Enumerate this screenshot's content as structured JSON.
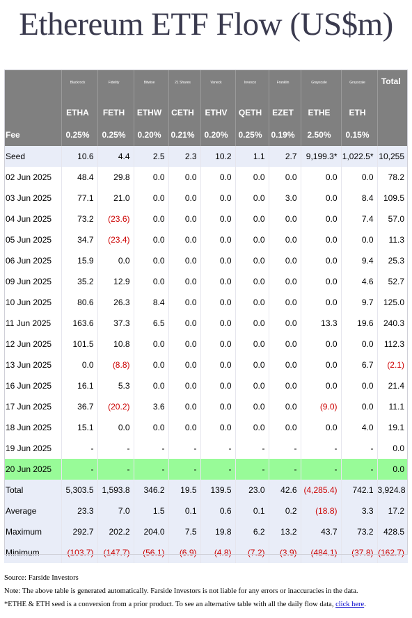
{
  "title": "Ethereum ETF Flow (US$m)",
  "table": {
    "issuers": [
      "Blackrock",
      "Fidelity",
      "Bitwise",
      "21 Shares",
      "Vaneck",
      "Invesco",
      "Franklin",
      "Grayscale",
      "Grayscale"
    ],
    "total_label": "Total",
    "tickers": [
      "ETHA",
      "FETH",
      "ETHW",
      "CETH",
      "ETHV",
      "QETH",
      "EZET",
      "ETHE",
      "ETH"
    ],
    "fee_label": "Fee",
    "fees": [
      "0.25%",
      "0.25%",
      "0.20%",
      "0.21%",
      "0.20%",
      "0.25%",
      "0.19%",
      "2.50%",
      "0.15%"
    ],
    "seed": {
      "label": "Seed",
      "values": [
        "10.6",
        "4.4",
        "2.5",
        "2.3",
        "10.2",
        "1.1",
        "2.7",
        "9,199.3*",
        "1,022.5*",
        "10,255"
      ]
    },
    "rows": [
      {
        "label": "02 Jun 2025",
        "values": [
          "48.4",
          "29.8",
          "0.0",
          "0.0",
          "0.0",
          "0.0",
          "0.0",
          "0.0",
          "0.0",
          "78.2"
        ]
      },
      {
        "label": "03 Jun 2025",
        "values": [
          "77.1",
          "21.0",
          "0.0",
          "0.0",
          "0.0",
          "0.0",
          "3.0",
          "0.0",
          "8.4",
          "109.5"
        ]
      },
      {
        "label": "04 Jun 2025",
        "values": [
          "73.2",
          "(23.6)",
          "0.0",
          "0.0",
          "0.0",
          "0.0",
          "0.0",
          "0.0",
          "7.4",
          "57.0"
        ]
      },
      {
        "label": "05 Jun 2025",
        "values": [
          "34.7",
          "(23.4)",
          "0.0",
          "0.0",
          "0.0",
          "0.0",
          "0.0",
          "0.0",
          "0.0",
          "11.3"
        ]
      },
      {
        "label": "06 Jun 2025",
        "values": [
          "15.9",
          "0.0",
          "0.0",
          "0.0",
          "0.0",
          "0.0",
          "0.0",
          "0.0",
          "9.4",
          "25.3"
        ]
      },
      {
        "label": "09 Jun 2025",
        "values": [
          "35.2",
          "12.9",
          "0.0",
          "0.0",
          "0.0",
          "0.0",
          "0.0",
          "0.0",
          "4.6",
          "52.7"
        ]
      },
      {
        "label": "10 Jun 2025",
        "values": [
          "80.6",
          "26.3",
          "8.4",
          "0.0",
          "0.0",
          "0.0",
          "0.0",
          "0.0",
          "9.7",
          "125.0"
        ]
      },
      {
        "label": "11 Jun 2025",
        "values": [
          "163.6",
          "37.3",
          "6.5",
          "0.0",
          "0.0",
          "0.0",
          "0.0",
          "13.3",
          "19.6",
          "240.3"
        ]
      },
      {
        "label": "12 Jun 2025",
        "values": [
          "101.5",
          "10.8",
          "0.0",
          "0.0",
          "0.0",
          "0.0",
          "0.0",
          "0.0",
          "0.0",
          "112.3"
        ]
      },
      {
        "label": "13 Jun 2025",
        "values": [
          "0.0",
          "(8.8)",
          "0.0",
          "0.0",
          "0.0",
          "0.0",
          "0.0",
          "0.0",
          "6.7",
          "(2.1)"
        ]
      },
      {
        "label": "16 Jun 2025",
        "values": [
          "16.1",
          "5.3",
          "0.0",
          "0.0",
          "0.0",
          "0.0",
          "0.0",
          "0.0",
          "0.0",
          "21.4"
        ]
      },
      {
        "label": "17 Jun 2025",
        "values": [
          "36.7",
          "(20.2)",
          "3.6",
          "0.0",
          "0.0",
          "0.0",
          "0.0",
          "(9.0)",
          "0.0",
          "11.1"
        ]
      },
      {
        "label": "18 Jun 2025",
        "values": [
          "15.1",
          "0.0",
          "0.0",
          "0.0",
          "0.0",
          "0.0",
          "0.0",
          "0.0",
          "4.0",
          "19.1"
        ]
      },
      {
        "label": "19 Jun 2025",
        "values": [
          "-",
          "-",
          "-",
          "-",
          "-",
          "-",
          "-",
          "-",
          "-",
          "0.0"
        ]
      },
      {
        "label": "20 Jun 2025",
        "highlight": true,
        "values": [
          "-",
          "-",
          "-",
          "-",
          "-",
          "-",
          "-",
          "-",
          "-",
          "0.0"
        ]
      }
    ],
    "summary": [
      {
        "label": "Total",
        "values": [
          "5,303.5",
          "1,593.8",
          "346.2",
          "19.5",
          "139.5",
          "23.0",
          "42.6",
          "(4,285.4)",
          "742.1",
          "3,924.8"
        ]
      },
      {
        "label": "Average",
        "values": [
          "23.3",
          "7.0",
          "1.5",
          "0.1",
          "0.6",
          "0.1",
          "0.2",
          "(18.8)",
          "3.3",
          "17.2"
        ]
      },
      {
        "label": "Maximum",
        "values": [
          "292.7",
          "202.2",
          "204.0",
          "7.5",
          "19.8",
          "6.2",
          "13.2",
          "43.7",
          "73.2",
          "428.5"
        ]
      },
      {
        "label": "Minimum",
        "values": [
          "(103.7)",
          "(147.7)",
          "(56.1)",
          "(6.9)",
          "(4.8)",
          "(7.2)",
          "(3.9)",
          "(484.1)",
          "(37.8)",
          "(162.7)"
        ]
      }
    ]
  },
  "footer": {
    "source": "Source: Farside Investors",
    "note": "Note: The above table is generated automatically. Farside Investors is not liable for any errors or inaccuracies in the data.",
    "seed_note": "*ETHE & ETH seed is a conversion from a prior product.  To see an alternative table with all the daily flow data, ",
    "link_text": "click here",
    "link_suffix": "."
  },
  "colors": {
    "header_bg": "#808080",
    "summary_bg": "#e9edf8",
    "highlight_bg": "#98fb98",
    "negative": "#cc0000"
  }
}
